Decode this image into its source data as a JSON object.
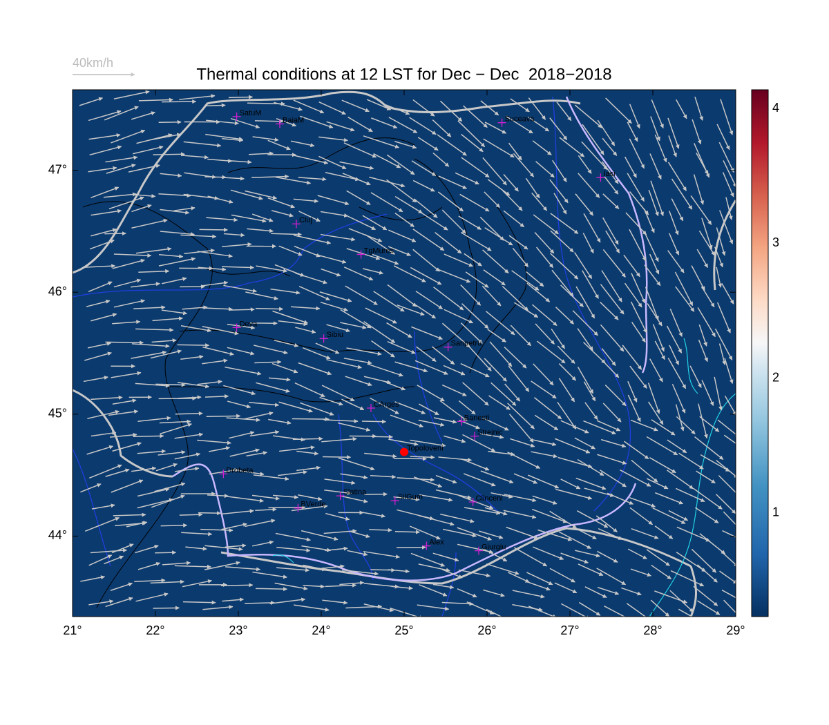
{
  "title": "Thermal conditions at 12 LST for Dec − Dec  2018−2018",
  "wind_scale_label": "40km/h",
  "map": {
    "xlim": [
      21,
      29
    ],
    "ylim": [
      43.34,
      47.66
    ],
    "xticks": [
      {
        "value": 21,
        "label": "21°"
      },
      {
        "value": 22,
        "label": "22°"
      },
      {
        "value": 23,
        "label": "23°"
      },
      {
        "value": 24,
        "label": "24°"
      },
      {
        "value": 25,
        "label": "25°"
      },
      {
        "value": 26,
        "label": "26°"
      },
      {
        "value": 27,
        "label": "27°"
      },
      {
        "value": 28,
        "label": "28°"
      },
      {
        "value": 29,
        "label": "29°"
      }
    ],
    "yticks": [
      {
        "value": 44,
        "label": "44°"
      },
      {
        "value": 45,
        "label": "45°"
      },
      {
        "value": 46,
        "label": "46°"
      },
      {
        "value": 47,
        "label": "47°"
      }
    ]
  },
  "colorbar": {
    "lim": [
      0.23,
      4.14
    ],
    "ticks": [
      1,
      2,
      3,
      4
    ]
  },
  "cities": [
    {
      "name": "SatuM",
      "lon": 22.98,
      "lat": 47.44,
      "marker": "plus"
    },
    {
      "name": "BaiaM",
      "lon": 23.5,
      "lat": 47.38,
      "marker": "plus"
    },
    {
      "name": "Suceava",
      "lon": 26.18,
      "lat": 47.39,
      "marker": "plus"
    },
    {
      "name": "Iasi",
      "lon": 27.37,
      "lat": 46.94,
      "marker": "plus"
    },
    {
      "name": "Cluj",
      "lon": 23.7,
      "lat": 46.56,
      "marker": "plus"
    },
    {
      "name": "TgMures",
      "lon": 24.48,
      "lat": 46.31,
      "marker": "plus"
    },
    {
      "name": "Deva",
      "lon": 22.98,
      "lat": 45.71,
      "marker": "plus"
    },
    {
      "name": "Sibiu",
      "lon": 24.03,
      "lat": 45.62,
      "marker": "plus"
    },
    {
      "name": "Sanpetru",
      "lon": 25.53,
      "lat": 45.55,
      "marker": "plus"
    },
    {
      "name": "CArges",
      "lon": 24.6,
      "lat": 45.05,
      "marker": "plus"
    },
    {
      "name": "Banesti",
      "lon": 25.69,
      "lat": 44.94,
      "marker": "plus"
    },
    {
      "name": "Strejnic",
      "lon": 25.85,
      "lat": 44.82,
      "marker": "plus"
    },
    {
      "name": "Topoloveni",
      "lon": 25.0,
      "lat": 44.69,
      "marker": "dot"
    },
    {
      "name": "Drobeta",
      "lon": 22.82,
      "lat": 44.51,
      "marker": "plus"
    },
    {
      "name": "Slatina",
      "lon": 24.23,
      "lat": 44.33,
      "marker": "plus"
    },
    {
      "name": "SilGum",
      "lon": 24.89,
      "lat": 44.29,
      "marker": "plus"
    },
    {
      "name": "Clinceni",
      "lon": 25.83,
      "lat": 44.28,
      "marker": "plus"
    },
    {
      "name": "BVerde",
      "lon": 23.72,
      "lat": 44.23,
      "marker": "plus"
    },
    {
      "name": "Alex",
      "lon": 25.27,
      "lat": 43.92,
      "marker": "plus"
    },
    {
      "name": "Giurgiu",
      "lon": 25.9,
      "lat": 43.88,
      "marker": "plus"
    }
  ]
}
